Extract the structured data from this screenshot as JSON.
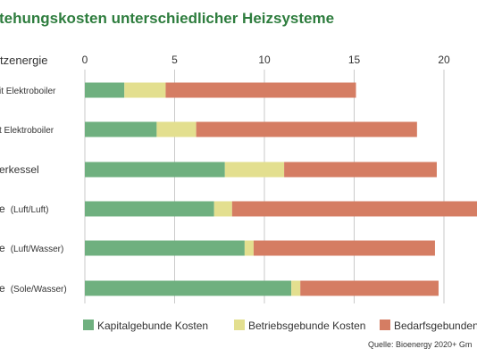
{
  "chart_data": {
    "type": "bar",
    "orientation": "horizontal",
    "stacked": true,
    "title": "tehungskosten unterschiedlicher Heizsysteme",
    "ylabel": "tzenergie",
    "xlim": [
      0,
      22
    ],
    "xticks": [
      0,
      5,
      10,
      15,
      20
    ],
    "grid": true,
    "legend_position": "bottom",
    "categories": [
      {
        "main": "it Elektroboiler",
        "detail": ""
      },
      {
        "main": "t Elektroboiler",
        "detail": ""
      },
      {
        "main": "erkessel",
        "detail": ""
      },
      {
        "main": "e",
        "detail": "(Luft/Luft)"
      },
      {
        "main": "e",
        "detail": "(Luft/Wasser)"
      },
      {
        "main": "e",
        "detail": "(Sole/Wasser)"
      }
    ],
    "series": [
      {
        "name": "Kapitalgebunde Kosten",
        "color": "#6fb07f",
        "values": [
          2.2,
          4.0,
          7.8,
          7.2,
          8.9,
          11.5
        ]
      },
      {
        "name": "Betriebsgebunde Kosten",
        "color": "#e3df8f",
        "values": [
          2.3,
          2.2,
          3.3,
          1.0,
          0.5,
          0.5
        ]
      },
      {
        "name": "Bedarfsgebunden",
        "color": "#d57d63",
        "values": [
          10.6,
          12.3,
          8.5,
          14.0,
          10.1,
          7.7
        ]
      }
    ],
    "source": "Quelle: Bioenergy 2020+ Gm"
  }
}
